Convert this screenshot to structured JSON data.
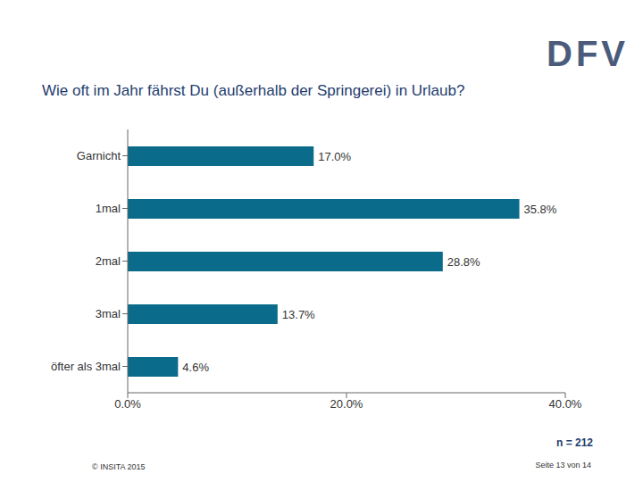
{
  "chart_data": {
    "type": "bar",
    "title": "Wie oft im Jahr fährst Du (außerhalb der Springerei) in Urlaub?",
    "orientation": "horizontal",
    "categories": [
      "Garnicht",
      "1mal",
      "2mal",
      "3mal",
      "öfter als 3mal"
    ],
    "values": [
      17.0,
      35.8,
      28.8,
      13.7,
      4.6
    ],
    "value_labels": [
      "17.0%",
      "35.8%",
      "28.8%",
      "13.7%",
      "4.6%"
    ],
    "data_labels": true,
    "color": "#0b6b8a",
    "xlim": [
      0,
      40
    ],
    "xticks": [
      {
        "value": 0,
        "label": "0.0%"
      },
      {
        "value": 20,
        "label": "20.0%"
      },
      {
        "value": 40,
        "label": "40.0%"
      }
    ],
    "grid": false,
    "annotations": [
      "n = 212",
      "© INSITA 2015",
      "Seite 13 von 14"
    ]
  },
  "logo": "DFV"
}
